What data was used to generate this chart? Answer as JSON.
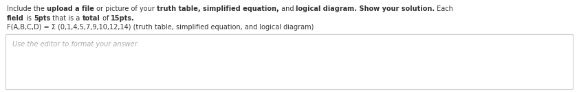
{
  "line1_segments": [
    [
      "Include the ",
      false
    ],
    [
      "upload a file",
      true
    ],
    [
      " or picture of your ",
      false
    ],
    [
      "truth table, simplified equation,",
      true
    ],
    [
      " and ",
      false
    ],
    [
      "logical diagram.",
      true
    ],
    [
      " Show your solution.",
      true
    ],
    [
      " Each",
      false
    ]
  ],
  "line2_segments": [
    [
      "field",
      true
    ],
    [
      " is ",
      false
    ],
    [
      "5pts",
      true
    ],
    [
      " that is a ",
      false
    ],
    [
      "total",
      true
    ],
    [
      " of ",
      false
    ],
    [
      "15pts.",
      true
    ]
  ],
  "line3": "F(A,B,C,D) = Σ (0,1,4,5,7,9,10,12,14) (truth table, simplified equation, and logical diagram)",
  "placeholder": "Use the editor to format your answer",
  "bg_color": "#ffffff",
  "text_color": "#333333",
  "placeholder_color": "#aaaaaa",
  "box_border_color": "#cccccc",
  "font_size": 7.0,
  "placeholder_font_size": 7.0
}
